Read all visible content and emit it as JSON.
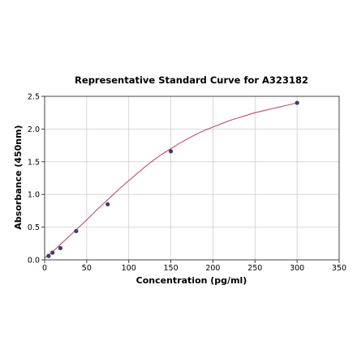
{
  "chart_data": {
    "type": "scatter",
    "title": "Representative Standard Curve for A323182",
    "xlabel": "Concentration (pg/ml)",
    "ylabel": "Absorbance (450nm)",
    "xlim": [
      0,
      350
    ],
    "ylim": [
      0,
      2.5
    ],
    "xticks": [
      0,
      50,
      100,
      150,
      200,
      250,
      300,
      350
    ],
    "yticks": [
      0.0,
      0.5,
      1.0,
      1.5,
      2.0,
      2.5
    ],
    "xtick_labels": [
      "0",
      "50",
      "100",
      "150",
      "200",
      "250",
      "300",
      "350"
    ],
    "ytick_labels": [
      "0.0",
      "0.5",
      "1.0",
      "1.5",
      "2.0",
      "2.5"
    ],
    "grid": true,
    "series": [
      {
        "points": {
          "x": [
            4.69,
            9.38,
            18.75,
            37.5,
            75,
            150,
            300
          ],
          "y": [
            0.06,
            0.11,
            0.18,
            0.44,
            0.85,
            1.66,
            2.4
          ]
        },
        "fit_curve": {
          "x": [
            0,
            10,
            20,
            30,
            40,
            50,
            60,
            70,
            80,
            90,
            100,
            110,
            120,
            130,
            140,
            150,
            160,
            170,
            180,
            190,
            200,
            210,
            220,
            230,
            240,
            250,
            260,
            270,
            280,
            290,
            300
          ],
          "y": [
            0.03,
            0.13,
            0.25,
            0.37,
            0.49,
            0.61,
            0.74,
            0.86,
            0.98,
            1.1,
            1.21,
            1.32,
            1.43,
            1.53,
            1.62,
            1.7,
            1.78,
            1.85,
            1.92,
            1.98,
            2.03,
            2.08,
            2.13,
            2.17,
            2.21,
            2.25,
            2.28,
            2.31,
            2.34,
            2.37,
            2.4
          ]
        }
      }
    ],
    "colors": {
      "curve": "#c0506e",
      "points": "#3d3d6b",
      "grid": "#cfcfcf"
    }
  }
}
